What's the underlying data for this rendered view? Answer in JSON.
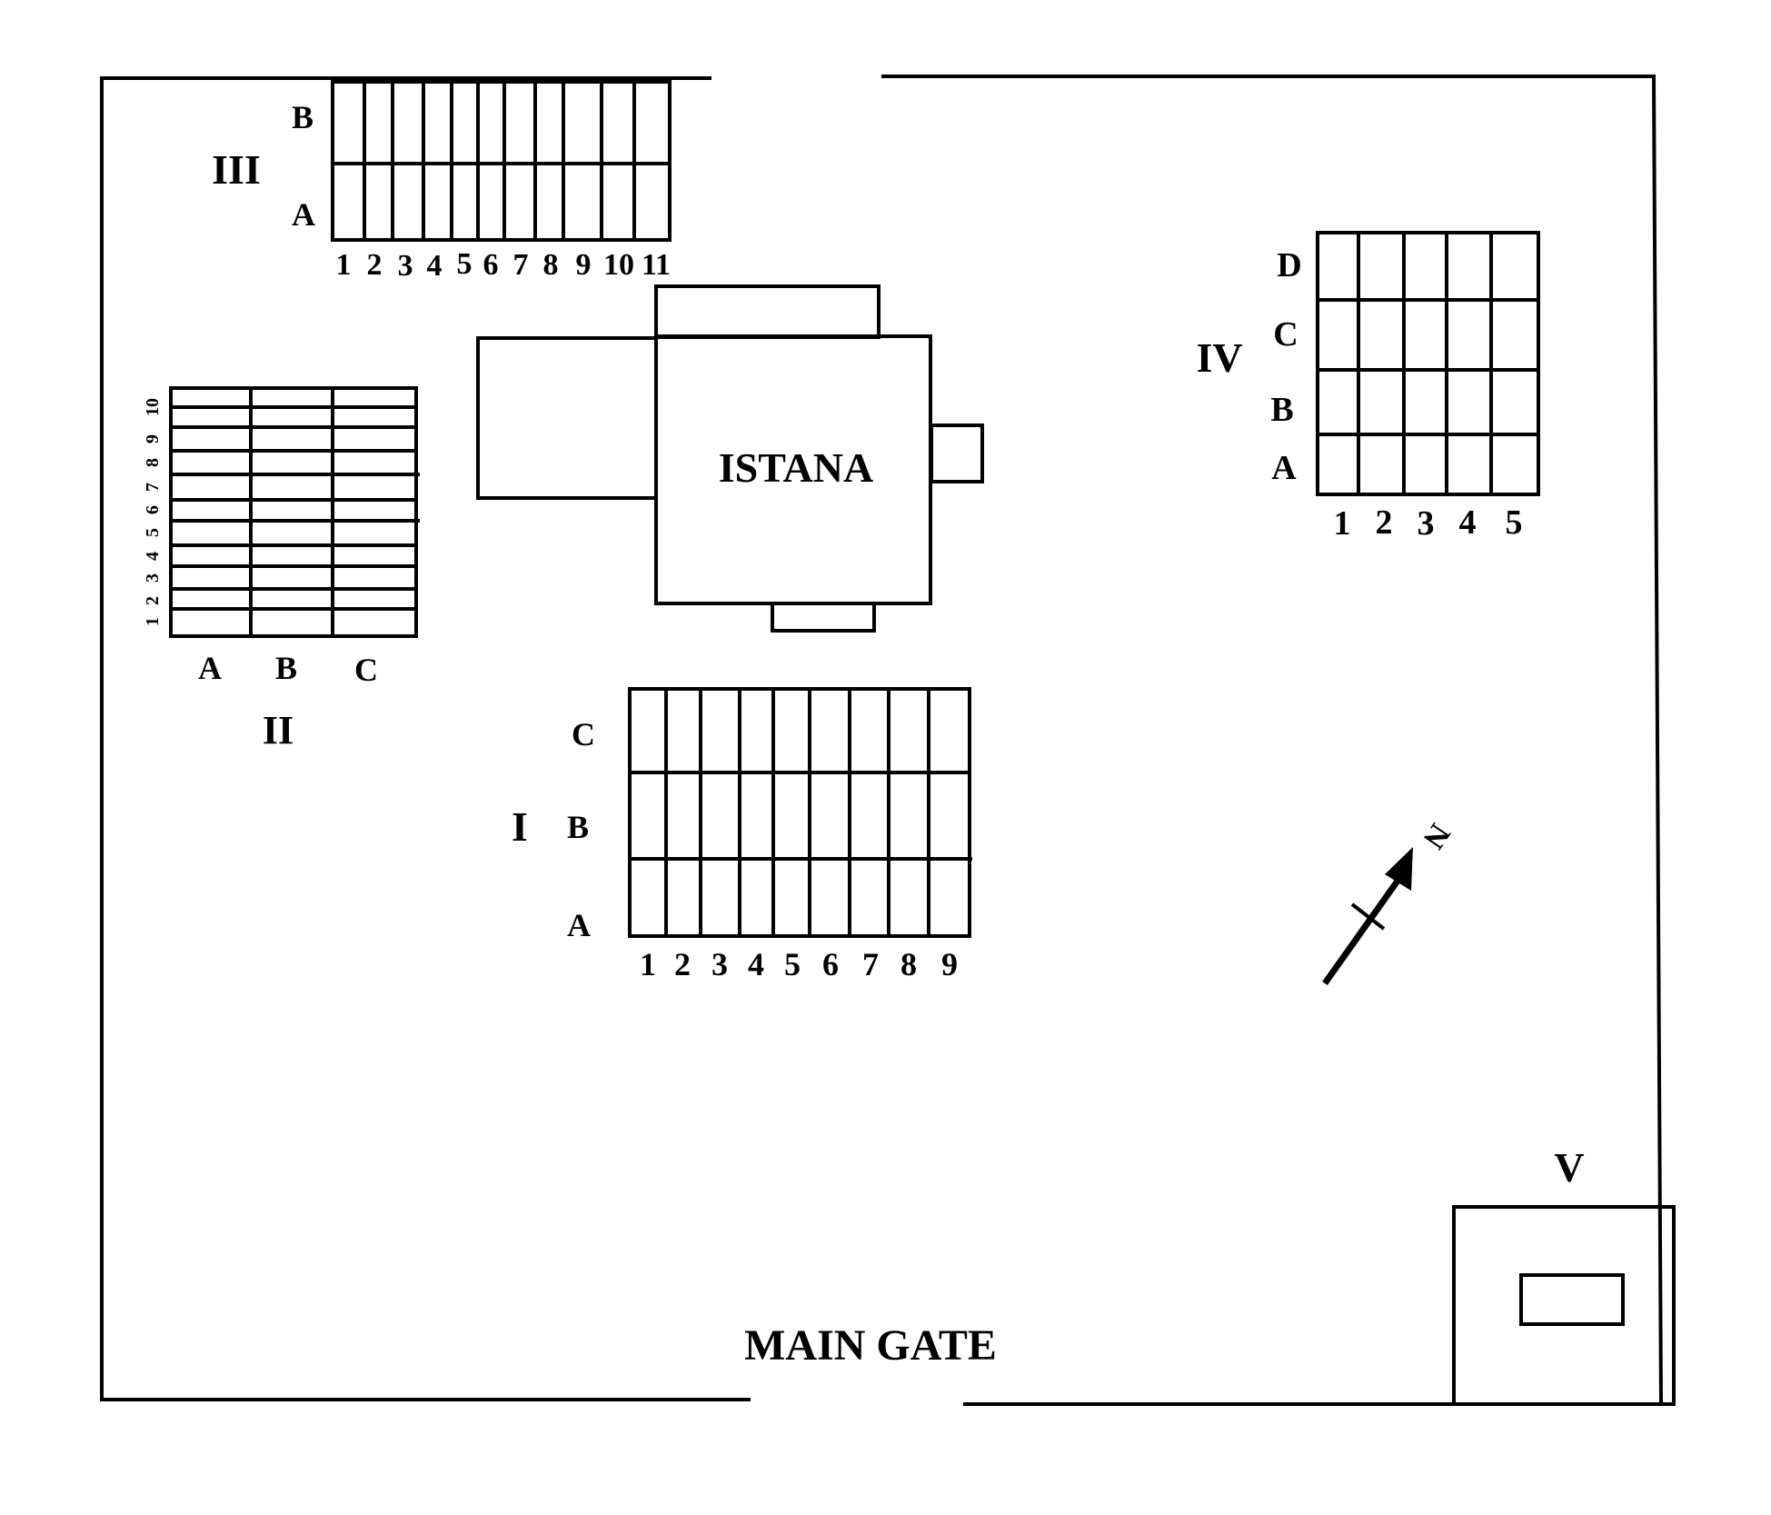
{
  "colors": {
    "line": "#000000",
    "background": "#ffffff"
  },
  "labels": {
    "istana": "ISTANA",
    "main_gate": "MAIN GATE",
    "north": "N",
    "section_1": "I",
    "section_2": "II",
    "section_3": "III",
    "section_4": "IV",
    "section_5": "V"
  },
  "grid_1": {
    "rows": [
      "C",
      "B",
      "A"
    ],
    "cols": [
      "1",
      "2",
      "3",
      "4",
      "5",
      "6",
      "7",
      "8",
      "9"
    ]
  },
  "grid_2": {
    "rows": [
      "1",
      "2",
      "3",
      "4",
      "5",
      "6",
      "7",
      "8",
      "9",
      "10"
    ],
    "cols": [
      "A",
      "B",
      "C"
    ]
  },
  "grid_3": {
    "rows": [
      "B",
      "A"
    ],
    "cols": [
      "1",
      "2",
      "3",
      "4",
      "5",
      "6",
      "7",
      "8",
      "9",
      "10",
      "11"
    ]
  },
  "grid_4": {
    "rows": [
      "D",
      "C",
      "B",
      "A"
    ],
    "cols": [
      "1",
      "2",
      "3",
      "4",
      "5"
    ]
  }
}
